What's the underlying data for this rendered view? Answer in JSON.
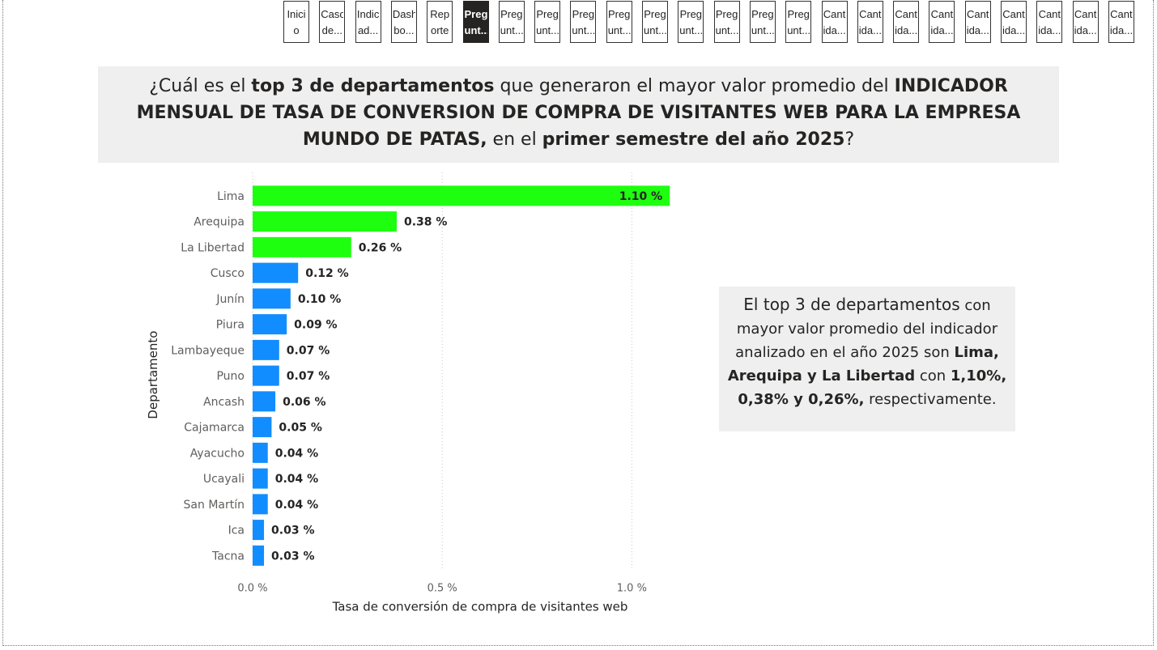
{
  "nav": {
    "buttons": [
      {
        "line1": "Inici",
        "line2": "o",
        "active": false
      },
      {
        "line1": "Caso",
        "line2": "de...",
        "active": false
      },
      {
        "line1": "Indic",
        "line2": "ad...",
        "active": false
      },
      {
        "line1": "Dash",
        "line2": "bo...",
        "active": false
      },
      {
        "line1": "Rep",
        "line2": "orte",
        "active": false
      },
      {
        "line1": "Preg",
        "line2": "unt...",
        "active": true
      },
      {
        "line1": "Preg",
        "line2": "unt...",
        "active": false
      },
      {
        "line1": "Preg",
        "line2": "unt...",
        "active": false
      },
      {
        "line1": "Preg",
        "line2": "unt...",
        "active": false
      },
      {
        "line1": "Preg",
        "line2": "unt...",
        "active": false
      },
      {
        "line1": "Preg",
        "line2": "unt...",
        "active": false
      },
      {
        "line1": "Preg",
        "line2": "unt...",
        "active": false
      },
      {
        "line1": "Preg",
        "line2": "unt...",
        "active": false
      },
      {
        "line1": "Preg",
        "line2": "unt...",
        "active": false
      },
      {
        "line1": "Preg",
        "line2": "unt...",
        "active": false
      },
      {
        "line1": "Cant",
        "line2": "ida...",
        "active": false
      },
      {
        "line1": "Cant",
        "line2": "ida...",
        "active": false
      },
      {
        "line1": "Cant",
        "line2": "ida...",
        "active": false
      },
      {
        "line1": "Cant",
        "line2": "ida...",
        "active": false
      },
      {
        "line1": "Cant",
        "line2": "ida...",
        "active": false
      },
      {
        "line1": "Cant",
        "line2": "ida...",
        "active": false
      },
      {
        "line1": "Cant",
        "line2": "ida...",
        "active": false
      },
      {
        "line1": "Cant",
        "line2": "ida...",
        "active": false
      },
      {
        "line1": "Cant",
        "line2": "ida...",
        "active": false
      }
    ]
  },
  "question": {
    "p1": "¿Cuál es el ",
    "b1": "top 3 de departamentos",
    "p2": " que generaron el mayor valor promedio del ",
    "b2": "INDICADOR MENSUAL DE TASA DE CONVERSION DE COMPRA DE VISITANTES WEB PARA LA EMPRESA MUNDO DE PATAS,",
    "p3": " en el ",
    "b3": "primer semestre del año 2025",
    "p4": "?"
  },
  "answer": {
    "lead": "El top 3 de departamentos",
    "p1": " con mayor valor promedio del indicador analizado en el año 2025 son ",
    "b1": "Lima, Arequipa y La Libertad",
    "p2": " con ",
    "b2": "1,10%, 0,38% y 0,26%,",
    "p3": " respectivamente."
  },
  "chart_data": {
    "type": "bar",
    "orientation": "horizontal",
    "categories": [
      "Lima",
      "Arequipa",
      "La Libertad",
      "Cusco",
      "Junín",
      "Piura",
      "Lambayeque",
      "Puno",
      "Ancash",
      "Cajamarca",
      "Ayacucho",
      "Ucayali",
      "San Martín",
      "Ica",
      "Tacna"
    ],
    "values": [
      1.1,
      0.38,
      0.26,
      0.12,
      0.1,
      0.09,
      0.07,
      0.07,
      0.06,
      0.05,
      0.04,
      0.04,
      0.04,
      0.03,
      0.03
    ],
    "data_labels": [
      "1.10 %",
      "0.38 %",
      "0.26 %",
      "0.12 %",
      "0.10 %",
      "0.09 %",
      "0.07 %",
      "0.07 %",
      "0.06 %",
      "0.05 %",
      "0.04 %",
      "0.04 %",
      "0.04 %",
      "0.03 %",
      "0.03 %"
    ],
    "highlight_top": 3,
    "highlight_color": "#1dff0f",
    "bar_color": "#118dff",
    "x_ticks": [
      0,
      0.5,
      1.0
    ],
    "x_tick_labels": [
      "0.0 %",
      "0.5 %",
      "1.0 %"
    ],
    "xlim": [
      0,
      1.17
    ],
    "xlabel": "Tasa de conversión de compra de visitantes web",
    "ylabel": "Departamento",
    "grid": "vertical dotted"
  }
}
